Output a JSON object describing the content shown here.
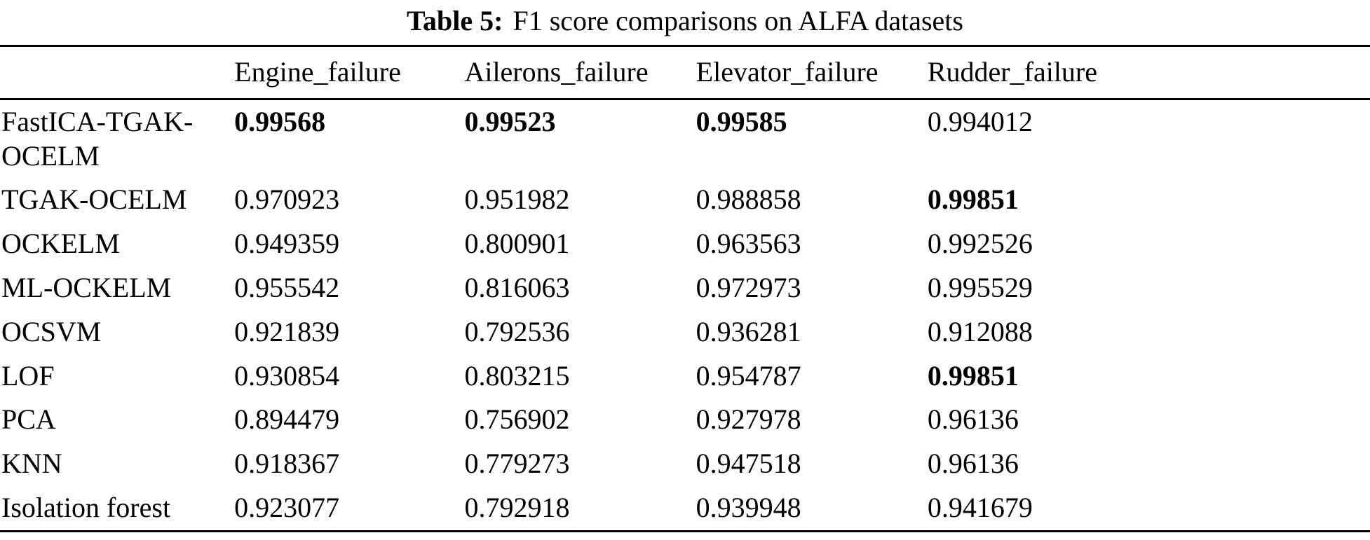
{
  "page": {
    "background": "#ffffff",
    "text_color": "#000000"
  },
  "caption": {
    "label": "Table 5:",
    "text": "F1 score comparisons on ALFA datasets"
  },
  "table": {
    "headers": [
      "",
      "Engine_failure",
      "Ailerons_failure",
      "Elevator_failure",
      "Rudder_failure"
    ],
    "rows": [
      {
        "method": "FastICA-TGAK-OCELM",
        "values": [
          "0.99568",
          "0.99523",
          "0.99585",
          "0.994012"
        ],
        "bold": [
          true,
          true,
          true,
          false
        ]
      },
      {
        "method": "TGAK-OCELM",
        "values": [
          "0.970923",
          "0.951982",
          "0.988858",
          "0.99851"
        ],
        "bold": [
          false,
          false,
          false,
          true
        ]
      },
      {
        "method": "OCKELM",
        "values": [
          "0.949359",
          "0.800901",
          "0.963563",
          "0.992526"
        ],
        "bold": [
          false,
          false,
          false,
          false
        ]
      },
      {
        "method": "ML-OCKELM",
        "values": [
          "0.955542",
          "0.816063",
          "0.972973",
          "0.995529"
        ],
        "bold": [
          false,
          false,
          false,
          false
        ]
      },
      {
        "method": "OCSVM",
        "values": [
          "0.921839",
          "0.792536",
          "0.936281",
          "0.912088"
        ],
        "bold": [
          false,
          false,
          false,
          false
        ]
      },
      {
        "method": "LOF",
        "values": [
          "0.930854",
          "0.803215",
          "0.954787",
          "0.99851"
        ],
        "bold": [
          false,
          false,
          false,
          true
        ]
      },
      {
        "method": "PCA",
        "values": [
          "0.894479",
          "0.756902",
          "0.927978",
          "0.96136"
        ],
        "bold": [
          false,
          false,
          false,
          false
        ]
      },
      {
        "method": "KNN",
        "values": [
          "0.918367",
          "0.779273",
          "0.947518",
          "0.96136"
        ],
        "bold": [
          false,
          false,
          false,
          false
        ]
      },
      {
        "method": "Isolation forest",
        "values": [
          "0.923077",
          "0.792918",
          "0.939948",
          "0.941679"
        ],
        "bold": [
          false,
          false,
          false,
          false
        ]
      }
    ]
  }
}
